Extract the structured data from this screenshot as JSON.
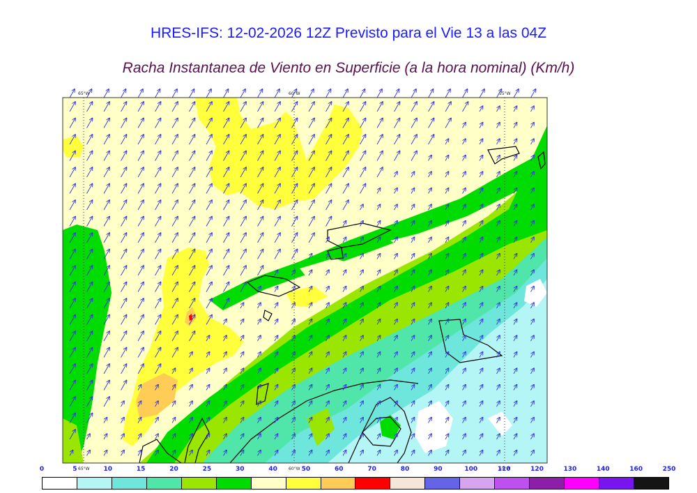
{
  "header": {
    "title": "HRES-IFS: 12-02-2026 12Z Previsto para el Vie 13 a las 04Z",
    "subtitle": "Racha Instantanea de Viento en Superficie (a la hora nominal) (Km/h)"
  },
  "map": {
    "lon_labels": [
      "65°W",
      "60°W",
      "55°W"
    ],
    "bottom_lon_labels": [
      "65°W",
      "60°W",
      "55°W"
    ]
  },
  "legend": {
    "labels": [
      "0",
      "5",
      "10",
      "15",
      "20",
      "25",
      "30",
      "40",
      "50",
      "60",
      "70",
      "80",
      "90",
      "100",
      "110",
      "120",
      "130",
      "140",
      "160",
      "250"
    ],
    "colors": [
      "#ffffff",
      "#b4f5f5",
      "#6ee6dc",
      "#50e6aa",
      "#9be600",
      "#00dc00",
      "#ffffc8",
      "#ffff3c",
      "#ffcd55",
      "#ff0000",
      "#f5e6d7",
      "#6464e6",
      "#d7a5f0",
      "#be50f0",
      "#8c1eaa",
      "#ff00ff",
      "#7814f0",
      "#141414"
    ]
  }
}
